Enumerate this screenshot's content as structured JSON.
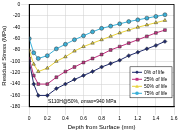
{
  "chart_data": {
    "type": "line",
    "x_label": "Depth from Surface (mm)",
    "y_label": "Residual Stress (MPa)",
    "annotation": "S110H@50%, σmax=940 MPa",
    "x": [
      0,
      0.05,
      0.1,
      0.2,
      0.3,
      0.4,
      0.5,
      0.6,
      0.7,
      0.8,
      0.9,
      1.0,
      1.1,
      1.2,
      1.3,
      1.4,
      1.5
    ],
    "series": [
      {
        "name": "0% of life",
        "color": "#1f2a6b",
        "marker": "diamond",
        "values": [
          -100,
          -140,
          -160,
          -160,
          -148,
          -140,
          -132,
          -125,
          -118,
          -110,
          -104,
          -98,
          -90,
          -84,
          -78,
          -72,
          -65
        ]
      },
      {
        "name": "25% of life",
        "color": "#c0307f",
        "marker": "square",
        "values": [
          -95,
          -125,
          -140,
          -140,
          -128,
          -118,
          -110,
          -102,
          -95,
          -88,
          -80,
          -74,
          -68,
          -62,
          -56,
          -50,
          -45
        ]
      },
      {
        "name": "50% of life",
        "color": "#e8d23a",
        "marker": "triangle",
        "values": [
          -80,
          -105,
          -118,
          -112,
          -100,
          -92,
          -82,
          -74,
          -68,
          -62,
          -56,
          -50,
          -45,
          -40,
          -36,
          -32,
          -28
        ]
      },
      {
        "name": "75% of life",
        "color": "#3ab0d8",
        "marker": "circle",
        "values": [
          -60,
          -85,
          -95,
          -90,
          -78,
          -70,
          -62,
          -55,
          -48,
          -42,
          -38,
          -34,
          -30,
          -27,
          -24,
          -21,
          -18
        ]
      }
    ],
    "xlim": [
      0,
      1.6
    ],
    "xticks": [
      0,
      0.2,
      0.4,
      0.6,
      0.8,
      1.0,
      1.2,
      1.4,
      1.6
    ],
    "ylim": [
      -180,
      0
    ],
    "yticks": [
      -180,
      -160,
      -140,
      -120,
      -100,
      -80,
      -60,
      -40,
      -20,
      0
    ],
    "grid": true,
    "legend": "lower right"
  }
}
